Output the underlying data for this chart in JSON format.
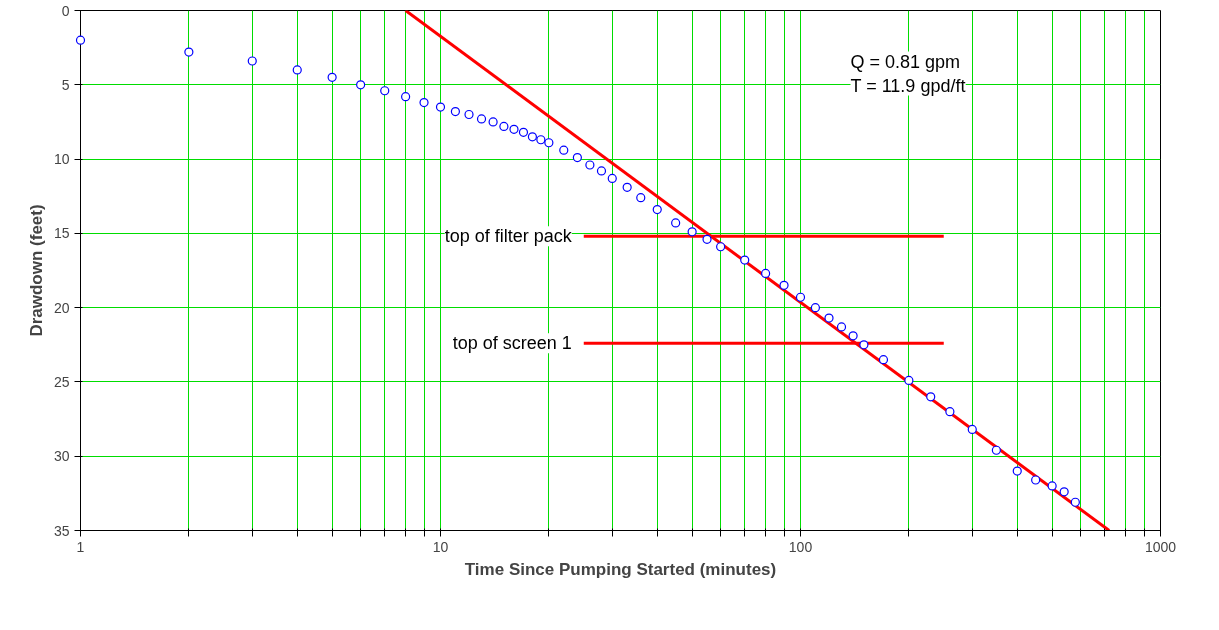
{
  "chart_data": {
    "type": "scatter",
    "xlabel": "Time Since Pumping Started (minutes)",
    "ylabel": "Drawdown (feet)",
    "log": "x",
    "xlim": [
      1,
      1000
    ],
    "ylim": [
      35,
      0
    ],
    "xticks": [
      1,
      {
        "value": 2,
        "label": null
      },
      {
        "value": 3,
        "label": null
      },
      {
        "value": 4,
        "label": null
      },
      {
        "value": 5,
        "label": null
      },
      {
        "value": 6,
        "label": null
      },
      {
        "value": 7,
        "label": null
      },
      {
        "value": 8,
        "label": null
      },
      {
        "value": 9,
        "label": null
      },
      10,
      {
        "value": 20,
        "label": null
      },
      {
        "value": 30,
        "label": null
      },
      {
        "value": 40,
        "label": null
      },
      {
        "value": 50,
        "label": null
      },
      {
        "value": 60,
        "label": null
      },
      {
        "value": 70,
        "label": null
      },
      {
        "value": 80,
        "label": null
      },
      {
        "value": 90,
        "label": null
      },
      100,
      {
        "value": 200,
        "label": null
      },
      {
        "value": 300,
        "label": null
      },
      {
        "value": 400,
        "label": null
      },
      {
        "value": 500,
        "label": null
      },
      {
        "value": 600,
        "label": null
      },
      {
        "value": 700,
        "label": null
      },
      {
        "value": 800,
        "label": null
      },
      {
        "value": 900,
        "label": null
      },
      1000
    ],
    "yticks": [
      0,
      5,
      10,
      15,
      20,
      25,
      30,
      35
    ],
    "grid": true,
    "series": [
      {
        "marker": "circle",
        "color": "#0000ff",
        "x": [
          1,
          2,
          3,
          4,
          5,
          6,
          7,
          8,
          9,
          10,
          11,
          12,
          13,
          14,
          15,
          16,
          17,
          18,
          19,
          20,
          22,
          24,
          26,
          28,
          30,
          33,
          36,
          40,
          45,
          50,
          55,
          60,
          70,
          80,
          90,
          100,
          110,
          120,
          130,
          140,
          150,
          170,
          200,
          230,
          260,
          300,
          350,
          400,
          450,
          500,
          540,
          580
        ],
        "values": [
          2.0,
          2.8,
          3.4,
          4.0,
          4.5,
          5.0,
          5.4,
          5.8,
          6.2,
          6.5,
          6.8,
          7.0,
          7.3,
          7.5,
          7.8,
          8.0,
          8.2,
          8.5,
          8.7,
          8.9,
          9.4,
          9.9,
          10.4,
          10.8,
          11.3,
          11.9,
          12.6,
          13.4,
          14.3,
          14.9,
          15.4,
          15.9,
          16.8,
          17.7,
          18.5,
          19.3,
          20.0,
          20.7,
          21.3,
          21.9,
          22.5,
          23.5,
          24.9,
          26.0,
          27.0,
          28.2,
          29.6,
          31.0,
          31.6,
          32.0,
          32.4,
          33.1
        ]
      },
      {
        "type": "line",
        "color": "#ff0000",
        "x": [
          8,
          720
        ],
        "values": [
          0,
          35
        ]
      },
      {
        "type": "line",
        "name": "top of filter pack",
        "color": "#ff0000",
        "x": [
          25,
          250
        ],
        "values": [
          15.2,
          15.2
        ]
      },
      {
        "type": "line",
        "name": "top of screen 1",
        "color": "#ff0000",
        "x": [
          25,
          250
        ],
        "values": [
          22.4,
          22.4
        ]
      }
    ],
    "annotations": [
      "Q = 0.81 gpm\nT = 11.9 gpd/ft"
    ]
  }
}
